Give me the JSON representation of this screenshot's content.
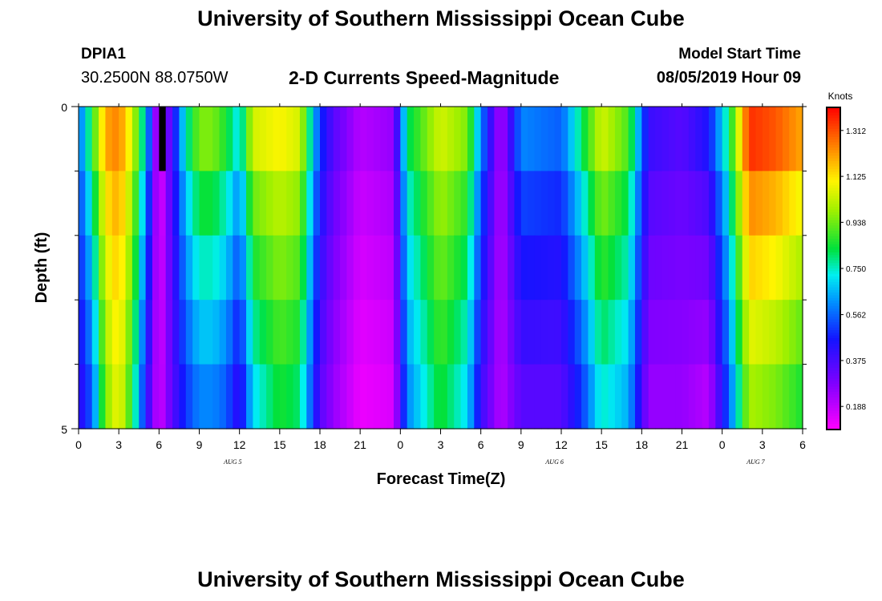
{
  "header": {
    "title": "University of Southern Mississippi Ocean Cube",
    "station_id": "DPIA1",
    "station_coords": "30.2500N 88.0750W",
    "plot_title": "2-D Currents Speed-Magnitude",
    "model_start_label": "Model Start Time",
    "model_start_value": "08/05/2019 Hour 09"
  },
  "footer": {
    "title": "University of Southern Mississippi Ocean Cube"
  },
  "chart_data": {
    "type": "heatmap",
    "title": "2-D Currents Speed-Magnitude",
    "xlabel": "Forecast Time(Z)",
    "ylabel": "Depth (ft)",
    "x_tick_labels": [
      "0",
      "3",
      "6",
      "9",
      "12",
      "15",
      "18",
      "21",
      "0",
      "3",
      "6",
      "9",
      "12",
      "15",
      "18",
      "21",
      "0",
      "3",
      "6"
    ],
    "x_range_hours": [
      0,
      54
    ],
    "date_labels": [
      {
        "text": "AUG 5",
        "hour": 11.5
      },
      {
        "text": "AUG 6",
        "hour": 35.5
      },
      {
        "text": "AUG 7",
        "hour": 50.5
      }
    ],
    "y_tick_labels": [
      "0",
      "5"
    ],
    "ylim": [
      0,
      5
    ],
    "depth_levels": 5,
    "colorbar": {
      "units": "Knots",
      "min": 0.094,
      "max": 1.406,
      "ticks": [
        "1.312",
        "1.125",
        "0.938",
        "0.750",
        "0.562",
        "0.375",
        "0.188"
      ],
      "tick_values": [
        1.312,
        1.125,
        0.938,
        0.75,
        0.562,
        0.375,
        0.188
      ]
    },
    "speed_keyframes_knots": [
      {
        "hour": 0,
        "surface": 0.55,
        "bottom": 0.4
      },
      {
        "hour": 1,
        "surface": 0.85,
        "bottom": 0.55
      },
      {
        "hour": 2,
        "surface": 1.2,
        "bottom": 0.95
      },
      {
        "hour": 3,
        "surface": 1.25,
        "bottom": 1.1
      },
      {
        "hour": 4,
        "surface": 1.05,
        "bottom": 0.85
      },
      {
        "hour": 5,
        "surface": 0.7,
        "bottom": 0.45
      },
      {
        "hour": 6,
        "surface": 0.1,
        "bottom": 0.15
      },
      {
        "hour": 7,
        "surface": 0.4,
        "bottom": 0.35
      },
      {
        "hour": 8,
        "surface": 0.75,
        "bottom": 0.5
      },
      {
        "hour": 9,
        "surface": 0.95,
        "bottom": 0.6
      },
      {
        "hour": 10,
        "surface": 0.95,
        "bottom": 0.6
      },
      {
        "hour": 11,
        "surface": 0.85,
        "bottom": 0.55
      },
      {
        "hour": 12,
        "surface": 0.7,
        "bottom": 0.4
      },
      {
        "hour": 13,
        "surface": 1.05,
        "bottom": 0.7
      },
      {
        "hour": 15,
        "surface": 1.1,
        "bottom": 0.85
      },
      {
        "hour": 16.5,
        "surface": 1.05,
        "bottom": 0.8
      },
      {
        "hour": 18,
        "surface": 0.5,
        "bottom": 0.35
      },
      {
        "hour": 19,
        "surface": 0.35,
        "bottom": 0.25
      },
      {
        "hour": 21,
        "surface": 0.2,
        "bottom": 0.12
      },
      {
        "hour": 23.5,
        "surface": 0.25,
        "bottom": 0.15
      },
      {
        "hour": 24.5,
        "surface": 0.8,
        "bottom": 0.6
      },
      {
        "hour": 27,
        "surface": 1.05,
        "bottom": 0.85
      },
      {
        "hour": 29,
        "surface": 0.95,
        "bottom": 0.7
      },
      {
        "hour": 30,
        "surface": 0.6,
        "bottom": 0.4
      },
      {
        "hour": 31.5,
        "surface": 0.2,
        "bottom": 0.2
      },
      {
        "hour": 33,
        "surface": 0.6,
        "bottom": 0.35
      },
      {
        "hour": 36,
        "surface": 0.55,
        "bottom": 0.35
      },
      {
        "hour": 37.5,
        "surface": 0.8,
        "bottom": 0.5
      },
      {
        "hour": 39,
        "surface": 1.05,
        "bottom": 0.75
      },
      {
        "hour": 41,
        "surface": 0.9,
        "bottom": 0.65
      },
      {
        "hour": 42.5,
        "surface": 0.4,
        "bottom": 0.25
      },
      {
        "hour": 45,
        "surface": 0.35,
        "bottom": 0.25
      },
      {
        "hour": 47,
        "surface": 0.45,
        "bottom": 0.2
      },
      {
        "hour": 48.5,
        "surface": 0.8,
        "bottom": 0.55
      },
      {
        "hour": 50,
        "surface": 1.35,
        "bottom": 1.0
      },
      {
        "hour": 52,
        "surface": 1.3,
        "bottom": 0.95
      },
      {
        "hour": 54,
        "surface": 1.2,
        "bottom": 0.85
      }
    ],
    "missing_cell": {
      "hour_start": 6,
      "hour_end": 6.5,
      "depth_level": 0
    }
  }
}
